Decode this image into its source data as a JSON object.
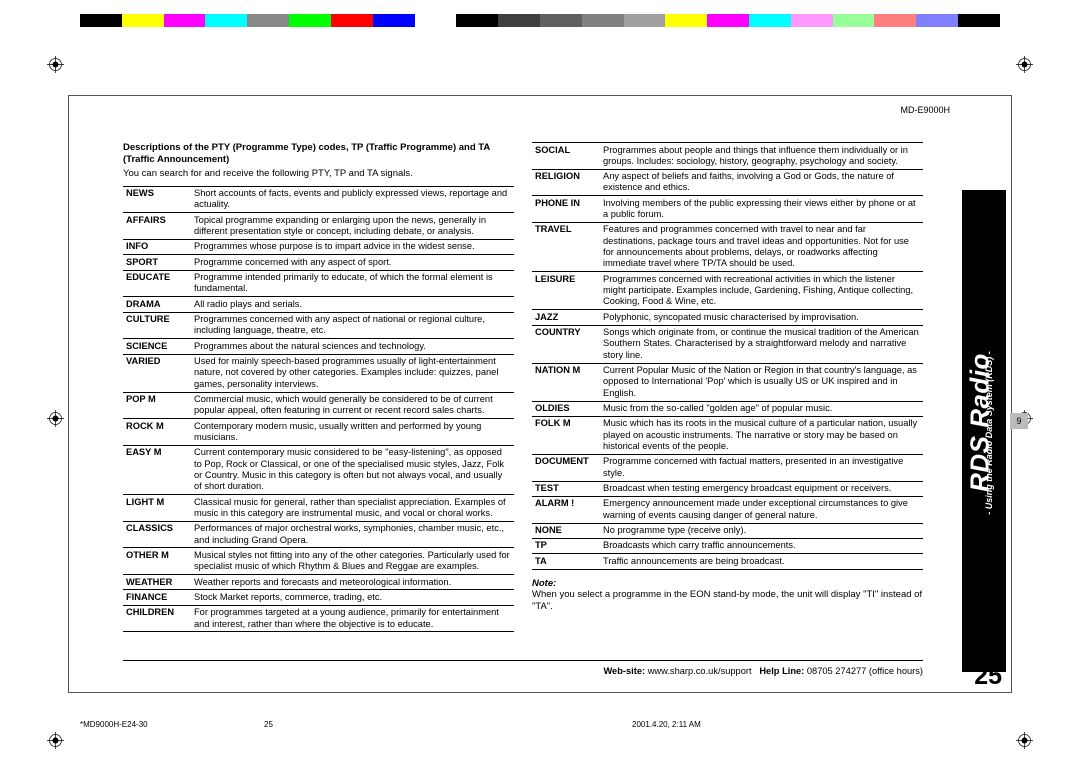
{
  "colorbar": [
    "#000000",
    "#ffff00",
    "#ff00ff",
    "#00ffff",
    "#888888",
    "#00ff00",
    "#ff0000",
    "#0000ff",
    "#ffffff",
    "#000000",
    "#404040",
    "#606060",
    "#808080",
    "#a0a0a0",
    "#ffff00",
    "#ff00ff",
    "#00ffff",
    "#ff99ff",
    "#99ff99",
    "#ff7f7f",
    "#7f7fff",
    "#000000"
  ],
  "model": "MD-E9000H",
  "intro": {
    "line1": "Descriptions of the PTY (Programme Type) codes, TP (Traffic Programme) and TA (Traffic Announcement)",
    "line2": "You can search for and receive the following PTY, TP and TA signals."
  },
  "left_rows": [
    [
      "NEWS",
      "Short accounts of facts, events and publicly expressed views, reportage and actuality."
    ],
    [
      "AFFAIRS",
      "Topical programme expanding or enlarging upon the news, generally in different presentation style or concept, including debate, or analysis."
    ],
    [
      "INFO",
      "Programmes whose purpose is to impart advice in the widest sense."
    ],
    [
      "SPORT",
      "Programme concerned with any aspect of sport."
    ],
    [
      "EDUCATE",
      "Programme intended primarily to educate, of which the formal element is fundamental."
    ],
    [
      "DRAMA",
      "All radio plays and serials."
    ],
    [
      "CULTURE",
      "Programmes concerned with any aspect of national or regional culture, including language, theatre, etc."
    ],
    [
      "SCIENCE",
      "Programmes about the natural sciences and technology."
    ],
    [
      "VARIED",
      "Used for mainly speech-based programmes usually of light-entertainment nature, not covered by other categories. Examples include: quizzes, panel games, personality interviews."
    ],
    [
      "POP M",
      "Commercial music, which would generally be considered to be of current popular appeal, often featuring in current or recent record sales charts."
    ],
    [
      "ROCK M",
      "Contemporary modern music, usually written and performed by young musicians."
    ],
    [
      "EASY M",
      "Current contemporary music considered to be \"easy-listening\", as opposed to Pop, Rock or Classical, or one of the specialised music styles, Jazz, Folk or Country. Music in this category is often but not always vocal, and usually of short duration."
    ],
    [
      "LIGHT M",
      "Classical music for general, rather than specialist appreciation. Examples of music in this category are instrumental music, and vocal or choral works."
    ],
    [
      "CLASSICS",
      "Performances of major orchestral works, symphonies, chamber music, etc., and including Grand Opera."
    ],
    [
      "OTHER M",
      "Musical styles not fitting into any of the other categories. Particularly used for specialist music of which Rhythm & Blues and Reggae are examples."
    ],
    [
      "WEATHER",
      "Weather reports and forecasts and meteorological information."
    ],
    [
      "FINANCE",
      "Stock Market reports, commerce, trading, etc."
    ],
    [
      "CHILDREN",
      "For programmes targeted at a young audience, primarily for entertainment and interest, rather than where the objective is to educate."
    ]
  ],
  "right_rows": [
    [
      "SOCIAL",
      "Programmes about people and things that influence them individually or in groups. Includes: sociology, history, geography, psychology and society."
    ],
    [
      "RELIGION",
      "Any aspect of beliefs and faiths, involving a God or Gods, the nature of existence and ethics."
    ],
    [
      "PHONE IN",
      "Involving members of the public expressing their views either by phone or at a public forum."
    ],
    [
      "TRAVEL",
      "Features and programmes concerned with travel to near and far destinations, package tours and travel ideas and opportunities. Not for use for announcements about problems, delays, or roadworks affecting immediate travel where TP/TA should be used."
    ],
    [
      "LEISURE",
      "Programmes concerned with recreational activities in which the listener might participate.\nExamples include, Gardening, Fishing, Antique collecting, Cooking, Food & Wine, etc."
    ],
    [
      "JAZZ",
      "Polyphonic, syncopated music characterised by improvisation."
    ],
    [
      "COUNTRY",
      "Songs which originate from, or continue the musical tradition of the American Southern States.\nCharacterised by a straightforward melody and narrative story line."
    ],
    [
      "NATION M",
      "Current Popular Music of the Nation or Region in that country's language, as opposed to International 'Pop' which is usually US or UK inspired and in English."
    ],
    [
      "OLDIES",
      "Music from the so-called \"golden age\" of popular music."
    ],
    [
      "FOLK M",
      "Music which has its roots in the musical culture of a particular nation, usually played on acoustic instruments. The narrative or story may be based on historical events of the people."
    ],
    [
      "DOCUMENT",
      "Programme concerned with factual matters, presented in an investigative style."
    ],
    [
      "TEST",
      "Broadcast when testing emergency broadcast equipment or receivers."
    ],
    [
      "ALARM !",
      "Emergency announcement made under exceptional circumstances to give warning of events causing danger of general nature."
    ],
    [
      "NONE",
      "No programme type (receive only)."
    ],
    [
      "TP",
      "Broadcasts which carry traffic announcements."
    ],
    [
      "TA",
      "Traffic announcements are being broadcast."
    ]
  ],
  "note": {
    "label": "Note:",
    "text": "When you select a programme in the EON stand-by mode, the unit will display \"TI\" instead of \"TA\"."
  },
  "sidebar": {
    "main": "RDS Radio",
    "sub": "- Using the Radio Data System (RDS) -"
  },
  "page_grey": "9",
  "page_large": "25",
  "footer": {
    "web_lbl": "Web-site:",
    "web": "www.sharp.co.uk/support",
    "help_lbl": "Help Line:",
    "help": "08705 274277 (office hours)"
  },
  "print": {
    "file": "*MD9000H-E24-30",
    "pg": "25",
    "stamp": "2001.4.20, 2:11 AM"
  }
}
